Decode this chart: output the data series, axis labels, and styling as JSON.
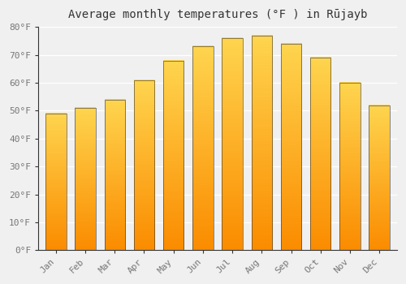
{
  "title": "Average monthly temperatures (°F ) in Rūjayb",
  "months": [
    "Jan",
    "Feb",
    "Mar",
    "Apr",
    "May",
    "Jun",
    "Jul",
    "Aug",
    "Sep",
    "Oct",
    "Nov",
    "Dec"
  ],
  "values": [
    49,
    51,
    54,
    61,
    68,
    73,
    76,
    77,
    74,
    69,
    60,
    52
  ],
  "bar_color_main": "#FFA726",
  "bar_color_light": "#FFD54F",
  "bar_color_dark": "#FB8C00",
  "bar_edge_color": "#333333",
  "ylim": [
    0,
    80
  ],
  "yticks": [
    0,
    10,
    20,
    30,
    40,
    50,
    60,
    70,
    80
  ],
  "ylabel_suffix": "°F",
  "background_color": "#f0f0f0",
  "plot_bg_color": "#f0f0f0",
  "grid_color": "#ffffff",
  "title_fontsize": 10,
  "tick_fontsize": 8,
  "tick_color": "#777777"
}
